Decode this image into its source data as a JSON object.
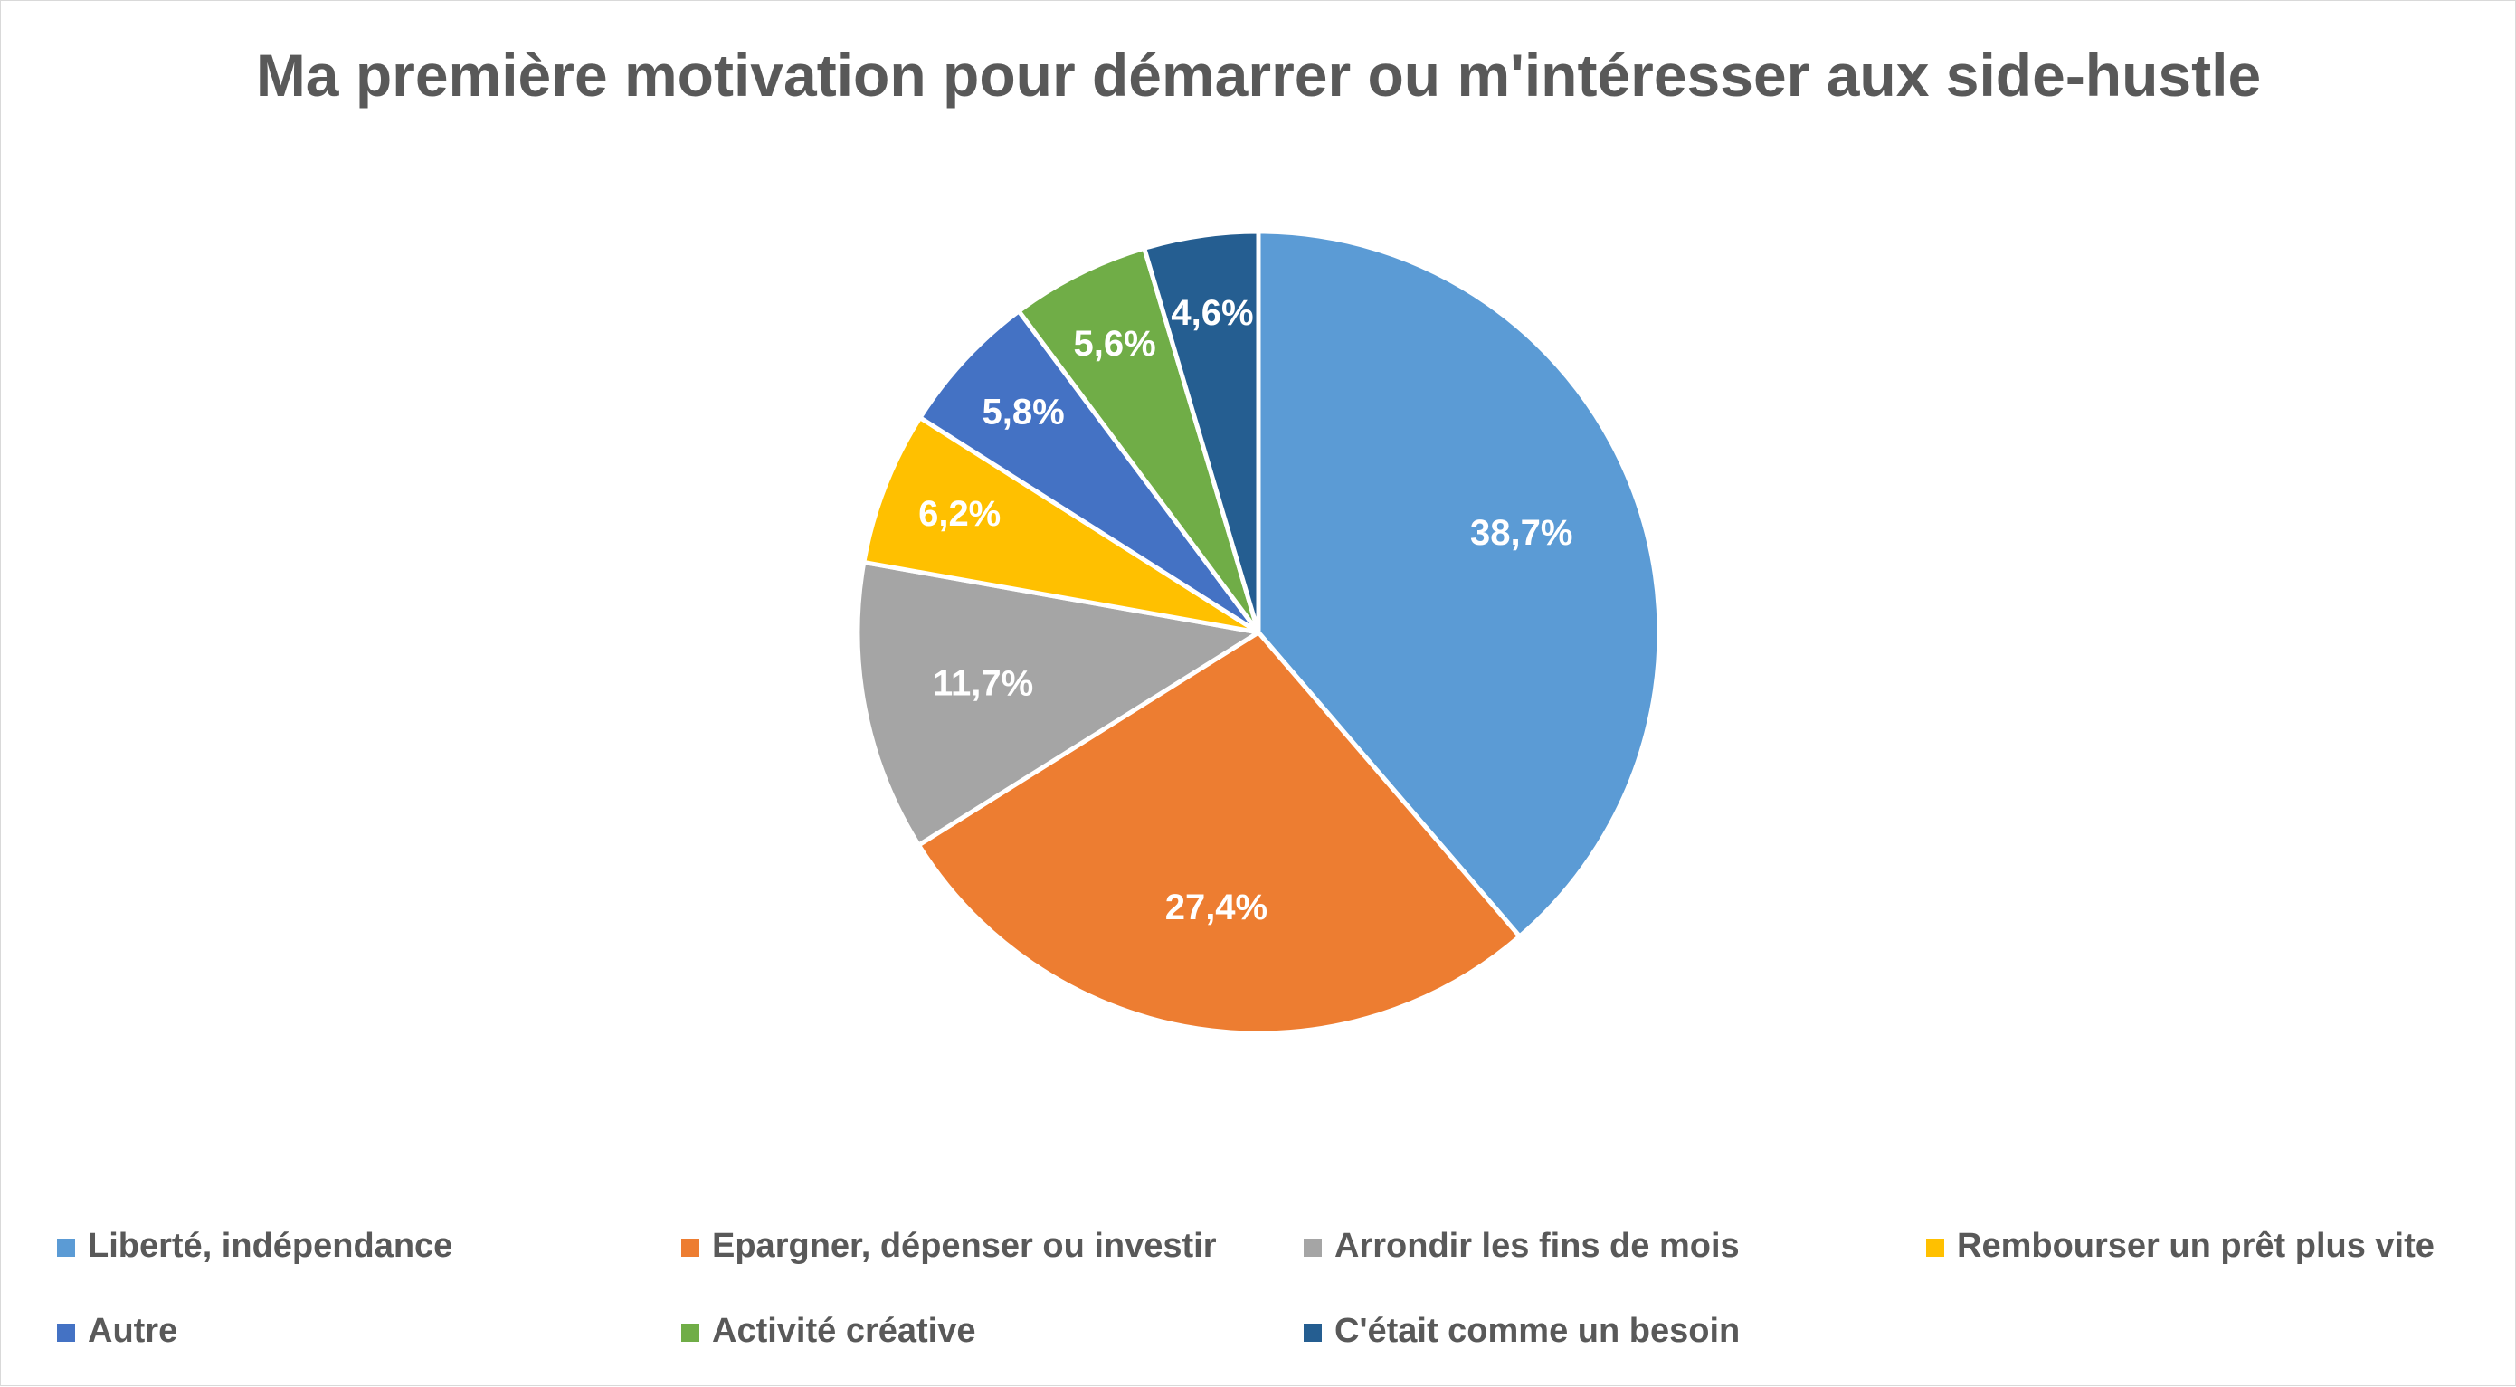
{
  "chart_data": {
    "type": "pie",
    "title": "Ma première motivation pour démarrer ou m'intéresser aux side-hustle",
    "categories": [
      "Liberté, indépendance",
      "Epargner, dépenser ou investir",
      "Arrondir les fins de mois",
      "Rembourser un prêt plus vite",
      "Autre",
      "Activité créative",
      "C'était comme un besoin"
    ],
    "values": [
      38.7,
      27.4,
      11.7,
      6.2,
      5.8,
      5.6,
      4.6
    ],
    "labels": [
      "38,7%",
      "27,4%",
      "11,7%",
      "6,2%",
      "5,8%",
      "5,6%",
      "4,6%"
    ],
    "colors": [
      "#5B9BD5",
      "#ED7D31",
      "#A5A5A5",
      "#FFC000",
      "#4472C4",
      "#70AD47",
      "#255E91"
    ],
    "legend_position": "bottom",
    "data_labels": "inside"
  }
}
